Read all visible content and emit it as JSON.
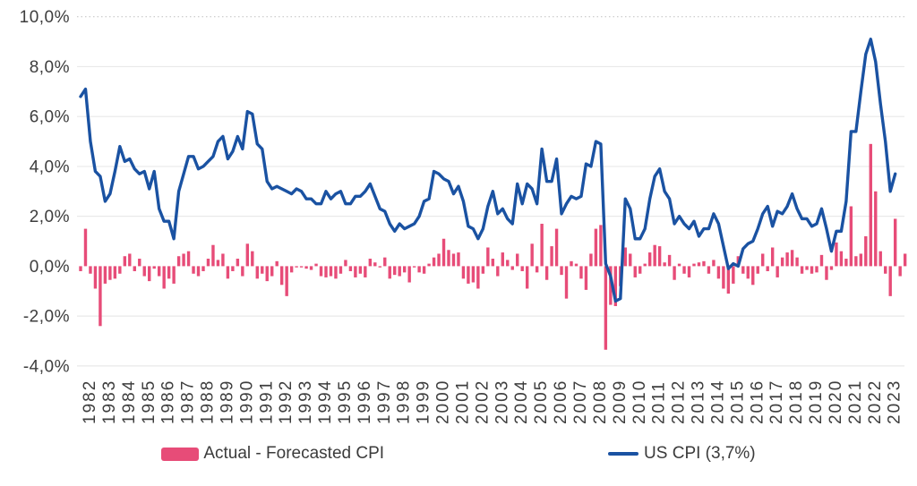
{
  "chart_data": {
    "type": "combo",
    "title": "",
    "frequency": "quarterly",
    "start_period": "1982Q1",
    "y_axis": {
      "tick_labels": [
        "10,0%",
        "8,0%",
        "6,0%",
        "4,0%",
        "2,0%",
        "0,0%",
        "-2,0%",
        "-4,0%"
      ],
      "tick_values": [
        10,
        8,
        6,
        4,
        2,
        0,
        -2,
        -4
      ],
      "min": -4,
      "max": 10,
      "grid": "horizontal light gray, dotted at 10, none at 0"
    },
    "x_axis": {
      "year_labels": [
        "1982",
        "1983",
        "1984",
        "1985",
        "1986",
        "1987",
        "1988",
        "1989",
        "1990",
        "1991",
        "1992",
        "1993",
        "1994",
        "1995",
        "1996",
        "1997",
        "1998",
        "1999",
        "2000",
        "2001",
        "2002",
        "2003",
        "2004",
        "2005",
        "2006",
        "2007",
        "2008",
        "2009",
        "2010",
        "2011",
        "2012",
        "2013",
        "2014",
        "2015",
        "2016",
        "2017",
        "2018",
        "2019",
        "2020",
        "2021",
        "2022",
        "2023"
      ],
      "label_rotation_degrees": -90
    },
    "series": [
      {
        "name": "Actual - Forecasted CPI",
        "type": "bar",
        "color": "#E74C78",
        "values": [
          -0.2,
          1.5,
          -0.3,
          -0.9,
          -2.4,
          -0.7,
          -0.55,
          -0.5,
          -0.3,
          0.4,
          0.5,
          -0.2,
          0.3,
          -0.4,
          -0.6,
          -0.1,
          -0.4,
          -0.9,
          -0.5,
          -0.7,
          0.4,
          0.5,
          0.6,
          -0.3,
          -0.4,
          -0.2,
          0.3,
          0.85,
          0.25,
          0.5,
          -0.5,
          -0.2,
          0.3,
          -0.4,
          0.9,
          0.6,
          -0.5,
          -0.3,
          -0.6,
          -0.4,
          0.2,
          -0.75,
          -1.2,
          -0.25,
          -0.05,
          -0.05,
          -0.1,
          -0.15,
          0.1,
          -0.4,
          -0.45,
          -0.4,
          -0.5,
          -0.3,
          0.25,
          -0.2,
          -0.45,
          -0.3,
          -0.45,
          0.3,
          0.15,
          -0.05,
          0.35,
          -0.5,
          -0.35,
          -0.4,
          -0.25,
          -0.65,
          -0.05,
          -0.25,
          -0.3,
          0.1,
          0.35,
          0.5,
          1.1,
          0.65,
          0.5,
          0.55,
          -0.5,
          -0.7,
          -0.65,
          -0.9,
          -0.3,
          0.75,
          0.3,
          -0.4,
          0.55,
          0.25,
          -0.15,
          0.5,
          -0.2,
          -0.9,
          0.9,
          -0.25,
          1.7,
          -0.55,
          0.8,
          1.5,
          -0.35,
          -1.3,
          0.2,
          0.1,
          -0.5,
          -0.95,
          0.5,
          1.5,
          1.65,
          -3.35,
          -1.55,
          -1.6,
          -0.8,
          0.75,
          0.5,
          -0.45,
          -0.3,
          0.1,
          0.55,
          0.85,
          0.8,
          0.15,
          0.45,
          -0.55,
          0.1,
          -0.3,
          -0.45,
          0.1,
          0.15,
          0.2,
          -0.3,
          0.25,
          -0.5,
          -0.9,
          -1.1,
          -0.7,
          0.4,
          -0.3,
          -0.5,
          -0.75,
          -0.3,
          0.5,
          -0.2,
          0.75,
          -0.45,
          0.35,
          0.55,
          0.65,
          0.35,
          -0.3,
          -0.15,
          -0.3,
          -0.25,
          0.45,
          -0.55,
          -0.15,
          0.95,
          0.6,
          0.3,
          2.4,
          0.4,
          0.5,
          1.2,
          4.9,
          3.0,
          0.6,
          -0.3,
          -1.2,
          1.9,
          -0.4,
          0.5
        ]
      },
      {
        "name": "US CPI (3,7%)",
        "type": "line",
        "color": "#1A52A2",
        "values": [
          6.8,
          7.1,
          5.0,
          3.8,
          3.6,
          2.6,
          2.9,
          3.8,
          4.8,
          4.2,
          4.3,
          3.9,
          3.7,
          3.8,
          3.1,
          3.8,
          2.3,
          1.8,
          1.8,
          1.1,
          3.0,
          3.7,
          4.4,
          4.4,
          3.9,
          4.0,
          4.2,
          4.4,
          5.0,
          5.2,
          4.3,
          4.6,
          5.2,
          4.7,
          6.2,
          6.1,
          4.9,
          4.7,
          3.4,
          3.1,
          3.2,
          3.1,
          3.0,
          2.9,
          3.1,
          3.0,
          2.7,
          2.7,
          2.5,
          2.5,
          3.0,
          2.7,
          2.9,
          3.0,
          2.5,
          2.5,
          2.8,
          2.8,
          3.0,
          3.3,
          2.8,
          2.3,
          2.2,
          1.7,
          1.4,
          1.7,
          1.5,
          1.6,
          1.7,
          2.0,
          2.6,
          2.7,
          3.8,
          3.7,
          3.5,
          3.4,
          2.9,
          3.2,
          2.6,
          1.6,
          1.5,
          1.1,
          1.5,
          2.4,
          3.0,
          2.1,
          2.3,
          1.9,
          1.7,
          3.3,
          2.5,
          3.3,
          3.1,
          2.5,
          4.7,
          3.4,
          3.4,
          4.3,
          2.1,
          2.5,
          2.8,
          2.7,
          2.8,
          4.1,
          4.0,
          5.0,
          4.9,
          0.1,
          -0.4,
          -1.4,
          -1.3,
          2.7,
          2.3,
          1.1,
          1.1,
          1.5,
          2.7,
          3.6,
          3.9,
          3.0,
          2.7,
          1.7,
          2.0,
          1.7,
          1.5,
          1.8,
          1.2,
          1.5,
          1.5,
          2.1,
          1.7,
          0.8,
          -0.1,
          0.1,
          0.0,
          0.7,
          0.9,
          1.0,
          1.5,
          2.1,
          2.4,
          1.6,
          2.2,
          2.1,
          2.4,
          2.9,
          2.3,
          1.9,
          1.9,
          1.6,
          1.7,
          2.3,
          1.5,
          0.6,
          1.4,
          1.4,
          2.6,
          5.4,
          5.4,
          7.0,
          8.5,
          9.1,
          8.2,
          6.5,
          5.0,
          3.0,
          3.7
        ]
      }
    ],
    "legend": {
      "position": "bottom-center",
      "items": [
        {
          "label": "Actual - Forecasted CPI",
          "swatch": "bar",
          "color": "#E74C78"
        },
        {
          "label": "US CPI (3,7%)",
          "swatch": "line",
          "color": "#1A52A2"
        }
      ]
    },
    "colors": {
      "background": "#FFFFFF",
      "gridline": "#E9E9E9",
      "gridline_dotted": "#C8C8C8",
      "axis_text": "#3D3D3D"
    }
  }
}
